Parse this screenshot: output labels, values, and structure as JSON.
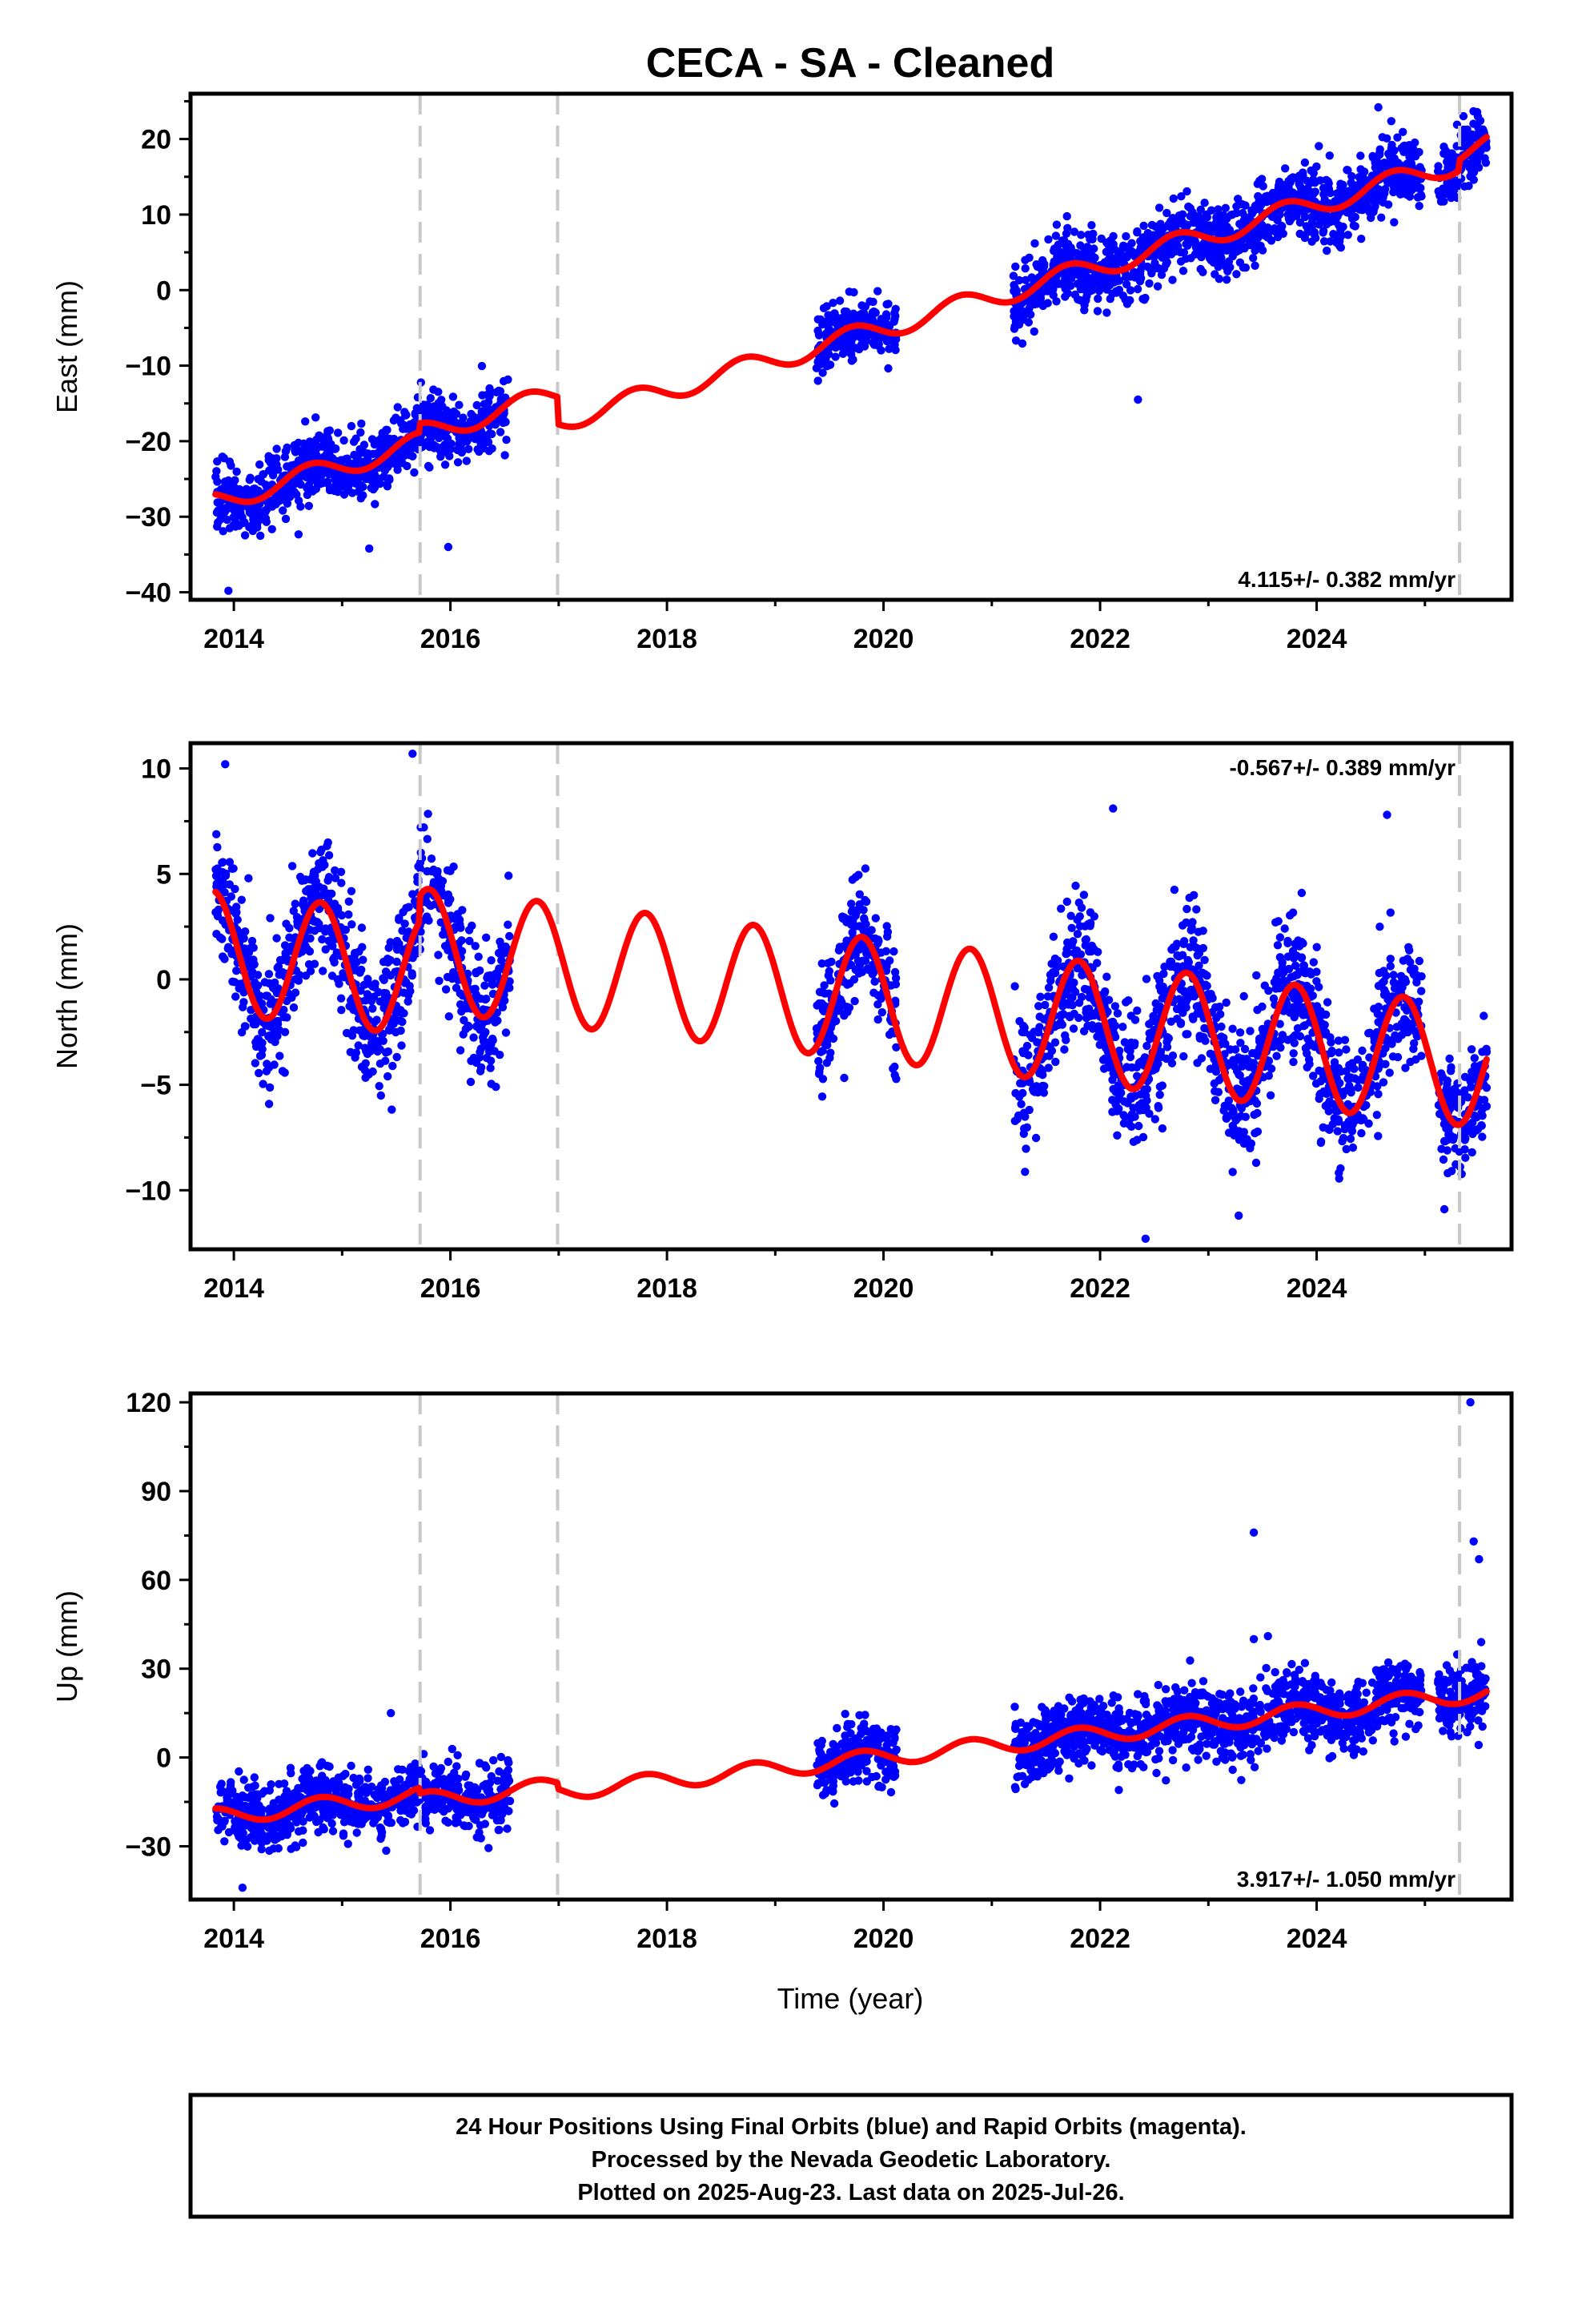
{
  "title": "CECA  - SA - Cleaned",
  "footer": {
    "lines": [
      "24 Hour Positions Using Final Orbits (blue) and Rapid Orbits (magenta).",
      "Processed by the Nevada Geodetic Laboratory.",
      "Plotted on 2025-Aug-23. Last data on 2025-Jul-26."
    ]
  },
  "colors": {
    "final_orbits": "#0000ff",
    "rapid_orbits": "#ff00ff",
    "model_fit": "#ff0000",
    "equipment_change": "#c8c8c8",
    "frame": "#000000"
  },
  "chart_data": [
    {
      "type": "scatter",
      "component": "east",
      "ylabel": "East (mm)",
      "xlabel": "",
      "xlim": [
        2013.6,
        2025.8
      ],
      "ylim": [
        -41,
        26
      ],
      "xticks": [
        2014,
        2016,
        2018,
        2020,
        2022,
        2024
      ],
      "yticks": [
        -40,
        -30,
        -20,
        -10,
        0,
        10,
        20
      ],
      "rate_label": "4.115+/- 0.382 mm/yr",
      "rate_position": "bottom-right",
      "equipment_changes": [
        2015.72,
        2016.99,
        2025.32
      ],
      "series": [
        {
          "kind": "daily_positions",
          "color": "#0000ff",
          "segments": [
            {
              "start": 2013.83,
              "end": 2016.55,
              "scatter": 2.2
            },
            {
              "start": 2019.38,
              "end": 2020.12,
              "scatter": 2.0
            },
            {
              "start": 2021.2,
              "end": 2024.97,
              "scatter": 2.3
            },
            {
              "start": 2025.12,
              "end": 2025.57,
              "scatter": 2.0
            }
          ],
          "outliers": [
            [
              2013.95,
              -39.8
            ],
            [
              2015.25,
              -34.2
            ],
            [
              2024.57,
              24.2
            ],
            [
              2022.35,
              -14.5
            ],
            [
              2024.12,
              17.8
            ],
            [
              2015.98,
              -34.0
            ]
          ]
        },
        {
          "kind": "model_fit",
          "color": "#ff0000",
          "t0": 2013.83,
          "value_at_t0": -28.0,
          "rate": 4.115,
          "annual_amplitude": 1.4,
          "annual_phase": 0.45,
          "offsets": [
            [
              2015.72,
              1.2
            ],
            [
              2016.99,
              -3.6
            ],
            [
              2025.32,
              1.4
            ]
          ],
          "x_range": [
            2013.83,
            2025.57
          ]
        }
      ]
    },
    {
      "type": "scatter",
      "component": "north",
      "ylabel": "North (mm)",
      "xlabel": "",
      "xlim": [
        2013.6,
        2025.8
      ],
      "ylim": [
        -12.8,
        11.2
      ],
      "xticks": [
        2014,
        2016,
        2018,
        2020,
        2022,
        2024
      ],
      "yticks": [
        -10,
        -5,
        0,
        5,
        10
      ],
      "rate_label": "-0.567+/- 0.389 mm/yr",
      "rate_position": "top-right",
      "equipment_changes": [
        2015.72,
        2016.99,
        2025.32
      ],
      "series": [
        {
          "kind": "daily_positions",
          "color": "#0000ff",
          "segments": [
            {
              "start": 2013.83,
              "end": 2016.55,
              "scatter": 1.6
            },
            {
              "start": 2019.38,
              "end": 2020.12,
              "scatter": 1.4
            },
            {
              "start": 2021.2,
              "end": 2024.97,
              "scatter": 1.6
            },
            {
              "start": 2025.12,
              "end": 2025.57,
              "scatter": 1.3
            }
          ],
          "outliers": [
            [
              2015.65,
              10.7
            ],
            [
              2022.42,
              -12.3
            ],
            [
              2022.12,
              8.1
            ],
            [
              2024.65,
              7.8
            ],
            [
              2013.92,
              10.2
            ],
            [
              2023.28,
              -11.2
            ],
            [
              2025.18,
              -10.9
            ]
          ]
        },
        {
          "kind": "model_fit",
          "color": "#ff0000",
          "t0": 2013.83,
          "value_at_t0": 1.3,
          "rate": -0.567,
          "annual_amplitude": 2.9,
          "annual_phase": 0.55,
          "offsets": [
            [
              2015.72,
              1.2
            ],
            [
              2016.99,
              0.0
            ],
            [
              2025.32,
              0.0
            ]
          ],
          "x_range": [
            2013.83,
            2025.57
          ]
        }
      ]
    },
    {
      "type": "scatter",
      "component": "up",
      "ylabel": "Up (mm)",
      "xlabel": "Time (year)",
      "xlim": [
        2013.6,
        2025.8
      ],
      "ylim": [
        -48,
        123
      ],
      "xticks": [
        2014,
        2016,
        2018,
        2020,
        2022,
        2024
      ],
      "yticks": [
        -30,
        0,
        30,
        60,
        90,
        120
      ],
      "rate_label": "3.917+/- 1.050 mm/yr",
      "rate_position": "bottom-right",
      "equipment_changes": [
        2015.72,
        2016.99,
        2025.32
      ],
      "series": [
        {
          "kind": "daily_positions",
          "color": "#0000ff",
          "segments": [
            {
              "start": 2013.83,
              "end": 2016.55,
              "scatter": 5.5
            },
            {
              "start": 2019.38,
              "end": 2020.12,
              "scatter": 5.0
            },
            {
              "start": 2021.2,
              "end": 2024.97,
              "scatter": 5.8
            },
            {
              "start": 2025.12,
              "end": 2025.57,
              "scatter": 5.5
            }
          ],
          "outliers": [
            [
              2025.42,
              120.0
            ],
            [
              2023.42,
              76.0
            ],
            [
              2025.45,
              73.0
            ],
            [
              2025.5,
              67.0
            ],
            [
              2023.55,
              41.0
            ],
            [
              2023.42,
              40.0
            ],
            [
              2025.52,
              39.0
            ],
            [
              2014.08,
              -44.0
            ],
            [
              2015.45,
              15.0
            ],
            [
              2024.55,
              29.5
            ]
          ]
        },
        {
          "kind": "model_fit",
          "color": "#ff0000",
          "t0": 2013.83,
          "value_at_t0": -20.0,
          "rate": 3.917,
          "annual_amplitude": 2.8,
          "annual_phase": 0.55,
          "offsets": [
            [
              2015.72,
              -2.0
            ],
            [
              2016.99,
              -2.0
            ],
            [
              2025.32,
              0.0
            ]
          ],
          "x_range": [
            2013.83,
            2025.57
          ]
        }
      ]
    }
  ]
}
